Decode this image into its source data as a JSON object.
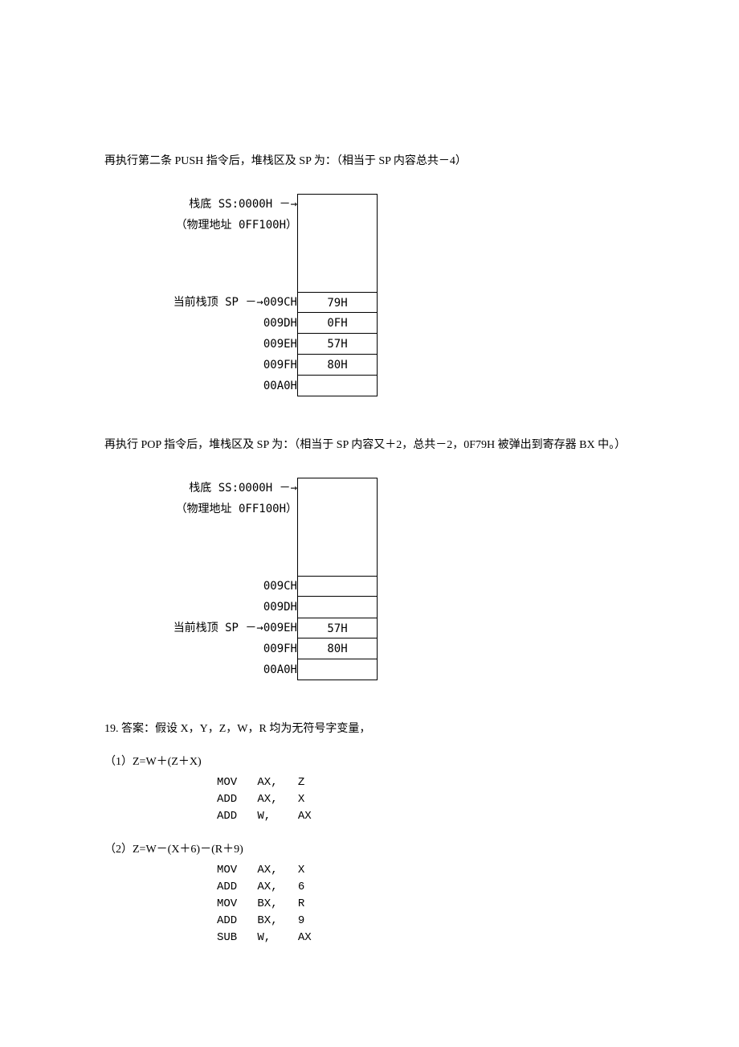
{
  "paragraph1": "再执行第二条 PUSH 指令后，堆栈区及 SP 为：（相当于 SP 内容总共－4）",
  "diagram1": {
    "labels": {
      "stackBottom": "栈底 SS:0000H －→",
      "physicalAddr": "（物理地址 0FF100H）",
      "currentSP": "当前栈顶 SP －→",
      "addr009C": "009CH",
      "addr009D": "009DH",
      "addr009E": "009EH",
      "addr009F": "009FH",
      "addr00A0": "00A0H"
    },
    "cells": {
      "c009C": "79H",
      "c009D": "0FH",
      "c009E": "57H",
      "c009F": "80H"
    }
  },
  "paragraph2": "再执行 POP 指令后，堆栈区及 SP 为：（相当于 SP 内容又＋2，总共－2，0F79H 被弹出到寄存器 BX 中。）",
  "diagram2": {
    "labels": {
      "stackBottom": "栈底 SS:0000H －→",
      "physicalAddr": "（物理地址 0FF100H）",
      "currentSP": "当前栈顶 SP －→",
      "addr009C": "009CH",
      "addr009D": "009DH",
      "addr009E": "009EH",
      "addr009F": "009FH",
      "addr00A0": "00A0H"
    },
    "cells": {
      "c009E": "57H",
      "c009F": "80H"
    }
  },
  "answer19Header": "19. 答案：假设 X，Y，Z，W，R 均为无符号字变量，",
  "q1": {
    "label": "（1）Z=W＋(Z＋X)",
    "code": "MOV   AX,   Z\nADD   AX,   X\nADD   W,    AX"
  },
  "q2": {
    "label": "（2）Z=W－(X＋6)－(R＋9)",
    "code": "MOV   AX,   X\nADD   AX,   6\nMOV   BX,   R\nADD   BX,   9\nSUB   W,    AX"
  }
}
